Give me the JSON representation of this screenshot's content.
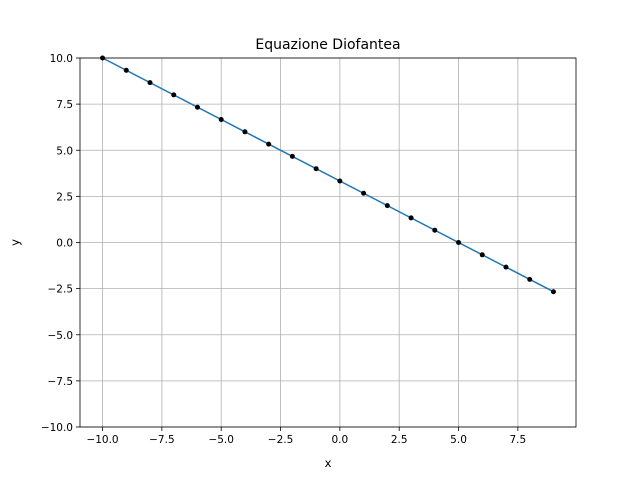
{
  "chart_data": {
    "type": "line",
    "title": "Equazione Diofantea",
    "xlabel": "x",
    "ylabel": "y",
    "xlim": [
      -10.95,
      9.95
    ],
    "ylim": [
      -10,
      10
    ],
    "xticks": [
      -10.0,
      -7.5,
      -5.0,
      -2.5,
      0.0,
      2.5,
      5.0,
      7.5
    ],
    "xtick_labels": [
      "−10.0",
      "−7.5",
      "−5.0",
      "−2.5",
      "0.0",
      "2.5",
      "5.0",
      "7.5"
    ],
    "yticks": [
      -10.0,
      -7.5,
      -5.0,
      -2.5,
      0.0,
      2.5,
      5.0,
      7.5,
      10.0
    ],
    "ytick_labels": [
      "−10.0",
      "−7.5",
      "−5.0",
      "−2.5",
      "0.0",
      "2.5",
      "5.0",
      "7.5",
      "10.0"
    ],
    "grid": true,
    "line": {
      "color": "#1f77b4",
      "x": [
        -10,
        9
      ],
      "y": [
        10.0,
        -2.667
      ]
    },
    "points": {
      "color": "#000000",
      "x": [
        -10,
        -9,
        -8,
        -7,
        -6,
        -5,
        -4,
        -3,
        -2,
        -1,
        0,
        1,
        2,
        3,
        4,
        5,
        6,
        7,
        8,
        9
      ],
      "y": [
        10.0,
        9.333,
        8.667,
        8.0,
        7.333,
        6.667,
        6.0,
        5.333,
        4.667,
        4.0,
        3.333,
        2.667,
        2.0,
        1.333,
        0.667,
        0.0,
        -0.667,
        -1.333,
        -2.0,
        -2.667
      ]
    }
  }
}
